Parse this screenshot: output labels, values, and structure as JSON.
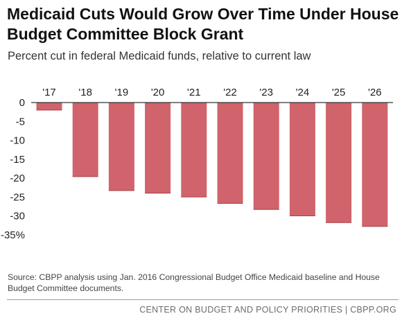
{
  "title": "Medicaid Cuts Would Grow Over Time Under House Budget Committee Block Grant",
  "subtitle": "Percent cut in federal Medicaid funds, relative to current law",
  "source": "Source: CBPP analysis using Jan. 2016 Congressional Budget Office Medicaid baseline and House Budget Committee documents.",
  "footer": "CENTER ON BUDGET AND POLICY PRIORITIES | CBPP.ORG",
  "colors": {
    "bar": "#d0636b",
    "bar_edge": "#a5404a",
    "axis": "#333333"
  },
  "chart_data": {
    "type": "bar",
    "title": "Medicaid Cuts Would Grow Over Time Under House Budget Committee Block Grant",
    "subtitle": "Percent cut in federal Medicaid funds, relative to current law",
    "categories": [
      "'17",
      "'18",
      "'19",
      "'20",
      "'21",
      "'22",
      "'23",
      "'24",
      "'25",
      "'26"
    ],
    "values": [
      -2.0,
      -19.6,
      -23.3,
      -24.0,
      -25.0,
      -26.7,
      -28.3,
      -30.0,
      -31.8,
      -32.8
    ],
    "y_ticks": [
      "0",
      "-5",
      "-10",
      "-15",
      "-20",
      "-25",
      "-30",
      "-35%"
    ],
    "y_tick_values": [
      0,
      -5,
      -10,
      -15,
      -20,
      -25,
      -30,
      -35
    ],
    "ylim": [
      -35,
      0
    ],
    "x_axis_position": "top",
    "grid": false,
    "legend": "none"
  }
}
